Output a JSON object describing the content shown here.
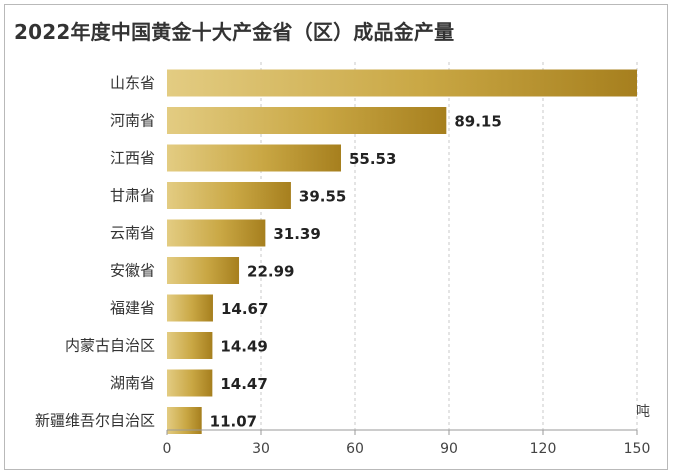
{
  "chart_data": {
    "type": "bar",
    "orientation": "horizontal",
    "title": "2022年度中国黄金十大产金省（区）成品金产量",
    "unit": "吨",
    "categories": [
      "山东省",
      "河南省",
      "江西省",
      "甘肃省",
      "云南省",
      "安徽省",
      "福建省",
      "内蒙古自治区",
      "湖南省",
      "新疆维吾尔自治区"
    ],
    "values": [
      150,
      89.15,
      55.53,
      39.55,
      31.39,
      22.99,
      14.67,
      14.49,
      14.47,
      11.07
    ],
    "value_labels": [
      "",
      "89.15",
      "55.53",
      "39.55",
      "31.39",
      "22.99",
      "14.67",
      "14.49",
      "14.47",
      "11.07"
    ],
    "xlim": [
      0,
      150
    ],
    "xticks": [
      0,
      30,
      60,
      90,
      120,
      150
    ],
    "grid": "vertical-dashed",
    "colors": {
      "gold_light": "#e3cc82",
      "gold_mid": "#c9a744",
      "gold_dark": "#a67f1e",
      "grid": "#c8c8c8",
      "axis": "#9a9a9a"
    }
  }
}
